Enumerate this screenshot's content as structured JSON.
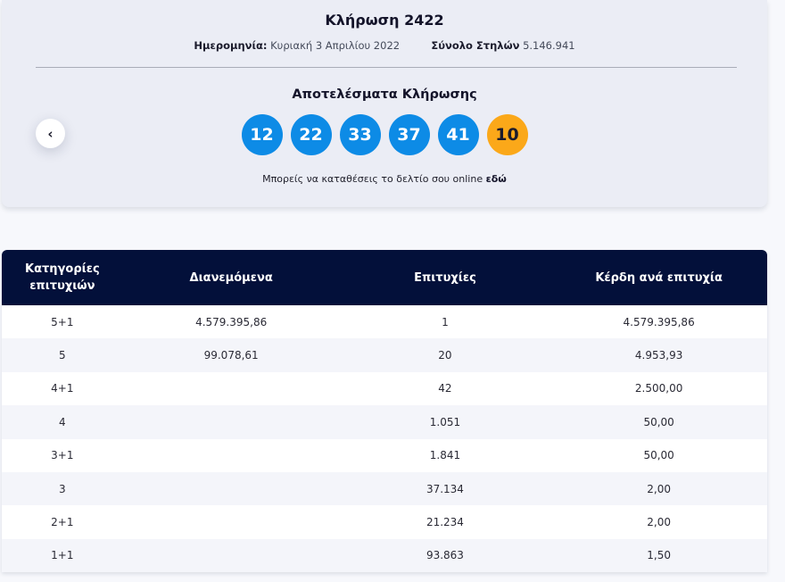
{
  "draw": {
    "title": "Κλήρωση 2422",
    "date_label": "Ημερομηνία:",
    "date_value": "Κυριακή 3 Απριλίου 2022",
    "total_label": "Σύνολο Στηλών",
    "total_value": "5.146.941"
  },
  "results": {
    "title": "Αποτελέσματα Κλήρωσης",
    "numbers": [
      "12",
      "22",
      "33",
      "37",
      "41"
    ],
    "bonus": "10",
    "main_color": "#0d8be6",
    "bonus_color": "#fba819"
  },
  "nav": {
    "prev_icon": "chevron-left-icon",
    "prev_glyph": "‹"
  },
  "online": {
    "text": "Μπορείς να καταθέσεις το δελτίο σου online",
    "link": "εδώ"
  },
  "table": {
    "headers": [
      "Κατηγορίες επιτυχιών",
      "Διανεμόμενα",
      "Επιτυχίες",
      "Κέρδη ανά επιτυχία"
    ],
    "rows": [
      [
        "5+1",
        "4.579.395,86",
        "1",
        "4.579.395,86"
      ],
      [
        "5",
        "99.078,61",
        "20",
        "4.953,93"
      ],
      [
        "4+1",
        "",
        "42",
        "2.500,00"
      ],
      [
        "4",
        "",
        "1.051",
        "50,00"
      ],
      [
        "3+1",
        "",
        "1.841",
        "50,00"
      ],
      [
        "3",
        "",
        "37.134",
        "2,00"
      ],
      [
        "2+1",
        "",
        "21.234",
        "2,00"
      ],
      [
        "1+1",
        "",
        "93.863",
        "1,50"
      ]
    ]
  }
}
